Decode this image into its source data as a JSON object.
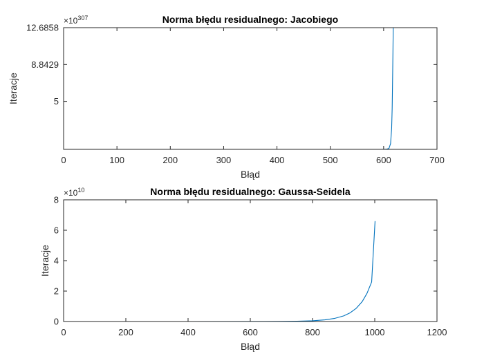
{
  "chart_data": [
    {
      "type": "line",
      "title": "Norma błędu residualnego: Jacobiego",
      "xlabel": "Błąd",
      "ylabel": "Iteracje",
      "xlim": [
        0,
        700
      ],
      "ylim": [
        0,
        12.6858
      ],
      "x_ticks": [
        "0",
        "100",
        "200",
        "300",
        "400",
        "500",
        "600",
        "700"
      ],
      "y_ticks": [
        {
          "value": 5,
          "label": "5"
        },
        {
          "value": 8.8429,
          "label": "8.8429"
        },
        {
          "value": 12.6858,
          "label": "12.6858"
        }
      ],
      "y_multiplier": {
        "base": "×10",
        "exponent": "307"
      },
      "series": [
        {
          "color": "#0072BD",
          "x": [
            0,
            100,
            200,
            300,
            400,
            500,
            560,
            580,
            595,
            605,
            610,
            613,
            615,
            616,
            617,
            618
          ],
          "y": [
            0,
            0,
            0,
            0,
            0,
            0,
            0,
            0,
            0,
            0.01,
            0.1,
            0.6,
            2.2,
            4.3,
            8.2,
            12.6858
          ]
        }
      ]
    },
    {
      "type": "line",
      "title": "Norma błędu residualnego: Gaussa-Seidela",
      "xlabel": "Błąd",
      "ylabel": "Iteracje",
      "xlim": [
        0,
        1200
      ],
      "ylim": [
        0,
        8
      ],
      "x_ticks": [
        "0",
        "200",
        "400",
        "600",
        "800",
        "1000",
        "1200"
      ],
      "y_ticks": [
        {
          "value": 0,
          "label": "0"
        },
        {
          "value": 2,
          "label": "2"
        },
        {
          "value": 4,
          "label": "4"
        },
        {
          "value": 6,
          "label": "6"
        },
        {
          "value": 8,
          "label": "8"
        }
      ],
      "y_multiplier": {
        "base": "×10",
        "exponent": "10"
      },
      "series": [
        {
          "color": "#0072BD",
          "x": [
            0,
            200,
            400,
            600,
            700,
            750,
            800,
            840,
            870,
            900,
            920,
            940,
            960,
            975,
            990,
            1001
          ],
          "y": [
            0,
            0,
            0,
            0.002,
            0.01,
            0.02,
            0.05,
            0.11,
            0.2,
            0.37,
            0.56,
            0.86,
            1.32,
            1.85,
            2.6,
            6.6
          ]
        }
      ]
    }
  ]
}
